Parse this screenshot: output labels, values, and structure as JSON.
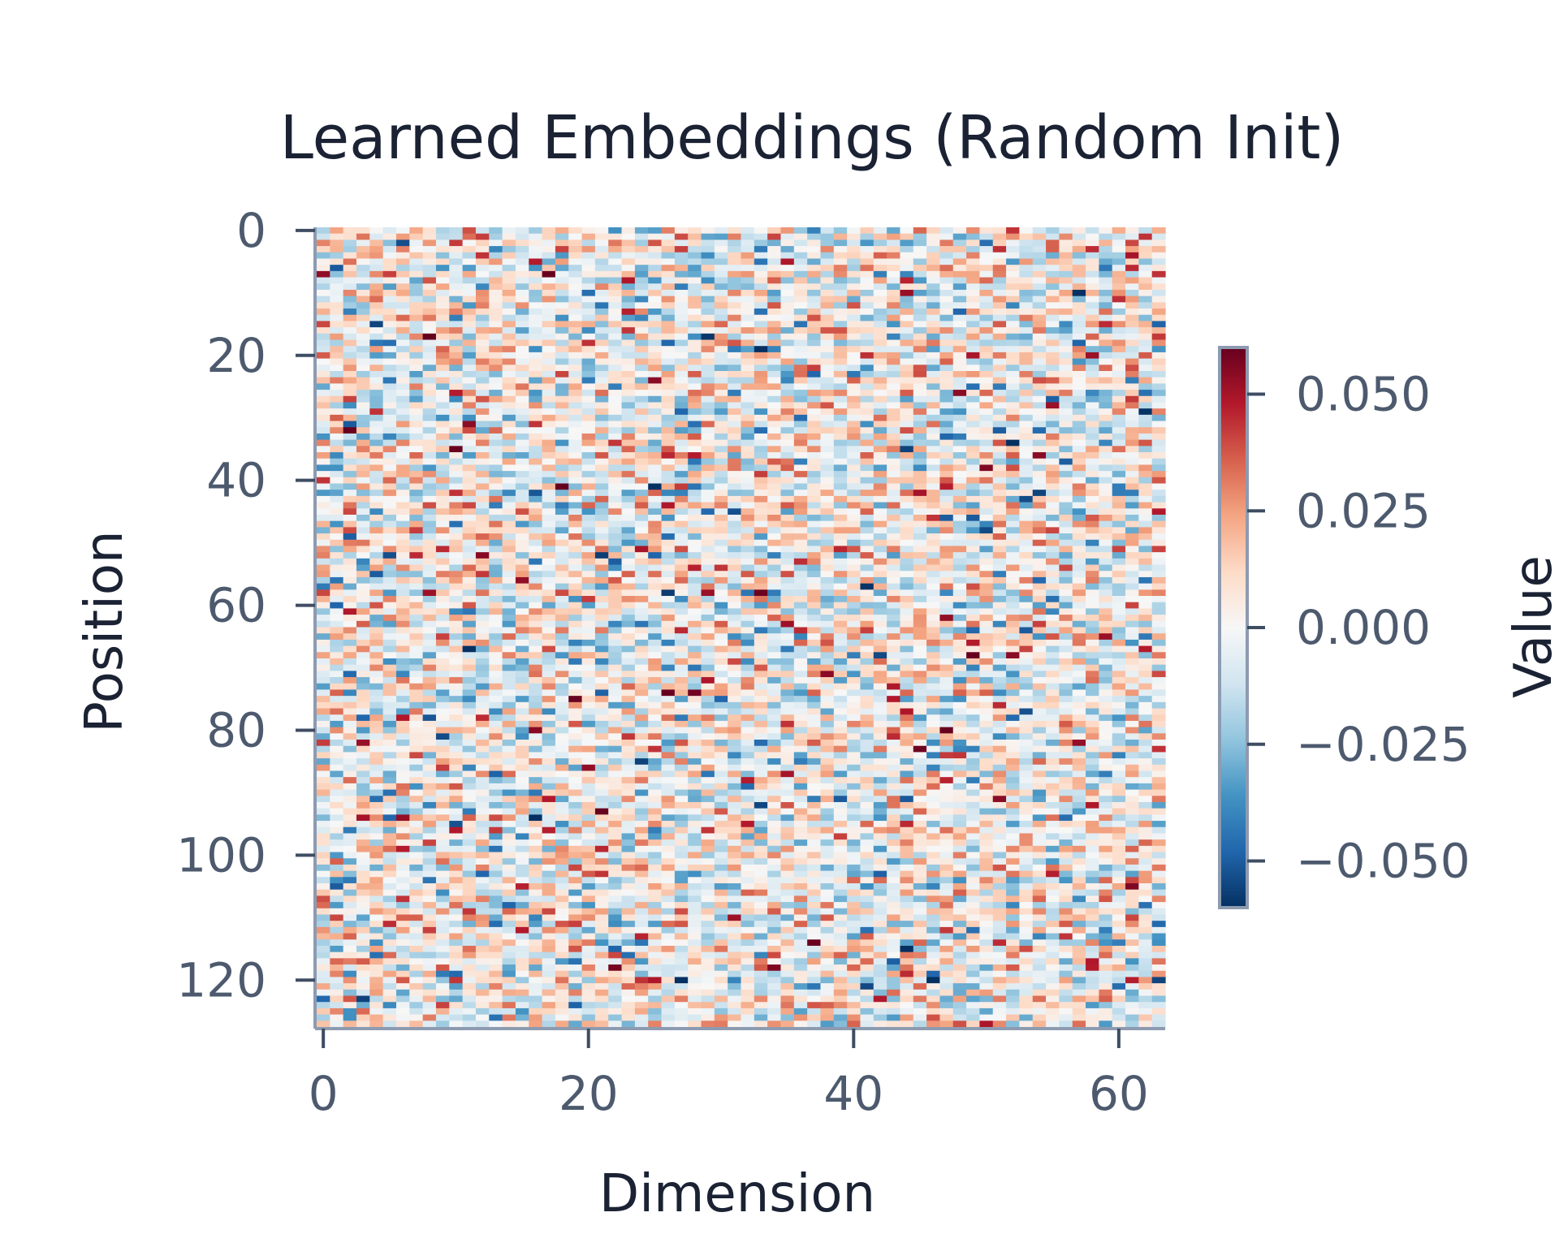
{
  "chart_data": {
    "type": "heatmap",
    "title": "Learned Embeddings (Random Init)",
    "xlabel": "Dimension",
    "ylabel": "Position",
    "rows": 128,
    "cols": 64,
    "x_ticks": [
      0,
      20,
      40,
      60
    ],
    "y_ticks": [
      0,
      20,
      40,
      60,
      80,
      100,
      120
    ],
    "value_range": [
      -0.06,
      0.06
    ],
    "colormap": "RdBu_r",
    "colormap_stops": [
      "#053061",
      "#2166ac",
      "#4393c3",
      "#92c5de",
      "#d1e5f0",
      "#f7f7f7",
      "#fddbc7",
      "#f4a582",
      "#d6604d",
      "#b2182b",
      "#67001f"
    ],
    "colorbar": {
      "label": "Value",
      "ticks": [
        0.05,
        0.025,
        0.0,
        -0.025,
        -0.05
      ],
      "tick_labels": [
        "0.050",
        "0.025",
        "0.000",
        "−0.025",
        "−0.050"
      ]
    },
    "distribution": {
      "kind": "normal",
      "mean": 0.0,
      "std": 0.02
    },
    "grid": false,
    "legend": "colorbar-right"
  }
}
